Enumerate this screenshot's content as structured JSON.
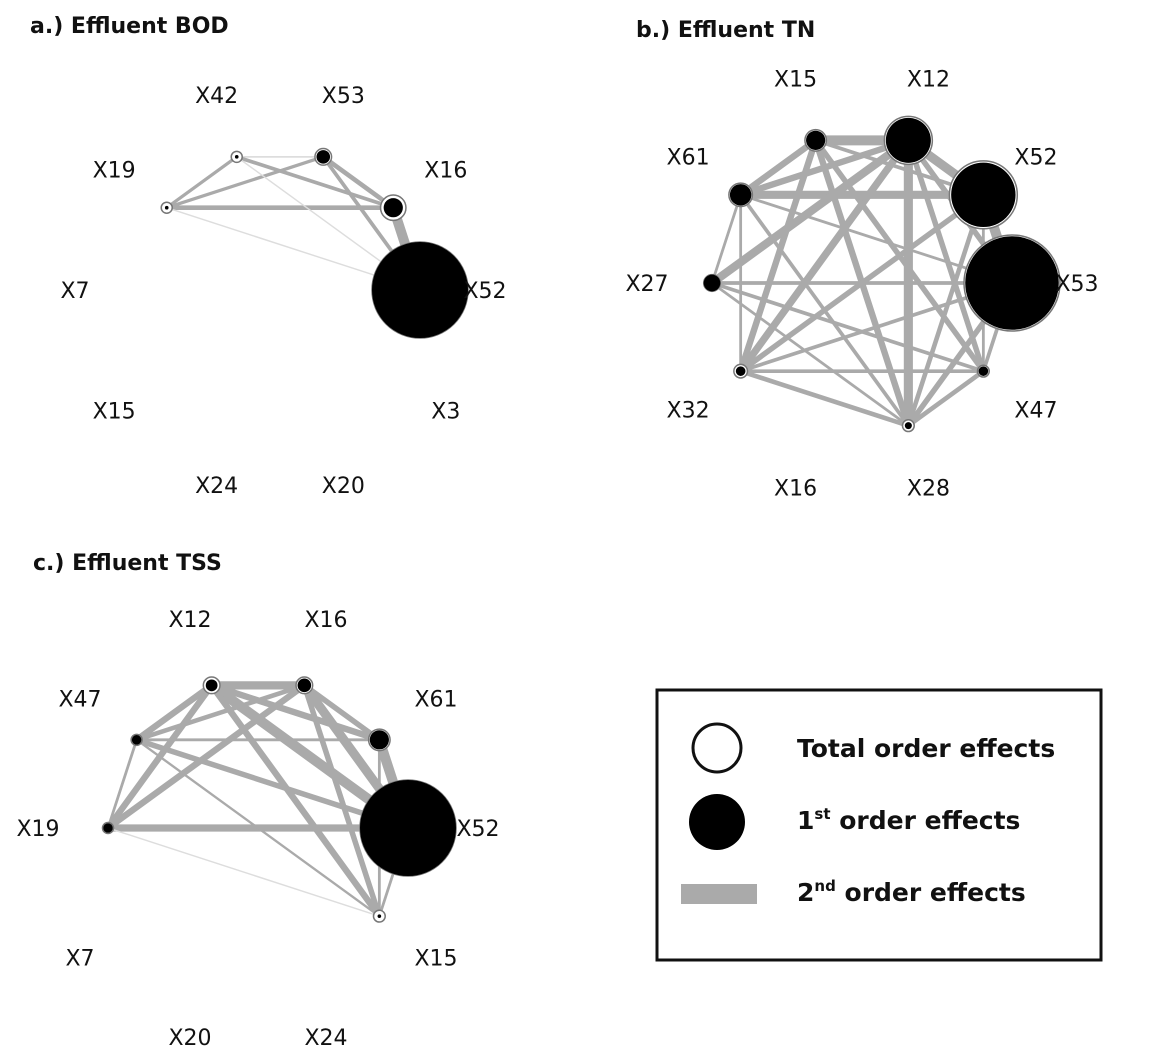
{
  "panels": [
    {
      "id": "a",
      "title": "a.) Effluent BOD",
      "variables": [
        "X42",
        "X53",
        "X16",
        "X52",
        "X3",
        "X20",
        "X24",
        "X15",
        "X7",
        "X19"
      ],
      "nodes": {
        "X42": {
          "first": 0.0,
          "total": 0.01
        },
        "X53": {
          "first": 0.02,
          "total": 0.03
        },
        "X16": {
          "first": 0.04,
          "total": 0.07
        },
        "X52": {
          "first": 1.0,
          "total": 1.0
        },
        "X19": {
          "first": 0.0,
          "total": 0.01
        }
      },
      "edges": [
        {
          "a": "X42",
          "b": "X53",
          "w": 0.08
        },
        {
          "a": "X42",
          "b": "X16",
          "w": 0.3
        },
        {
          "a": "X53",
          "b": "X16",
          "w": 0.4
        },
        {
          "a": "X19",
          "b": "X42",
          "w": 0.25
        },
        {
          "a": "X19",
          "b": "X53",
          "w": 0.25
        },
        {
          "a": "X19",
          "b": "X16",
          "w": 0.4
        },
        {
          "a": "X16",
          "b": "X52",
          "w": 1.0
        },
        {
          "a": "X53",
          "b": "X52",
          "w": 0.3
        },
        {
          "a": "X42",
          "b": "X52",
          "w": 0.05
        },
        {
          "a": "X19",
          "b": "X52",
          "w": 0.05
        }
      ]
    },
    {
      "id": "b",
      "title": "b.) Effluent TN",
      "variables": [
        "X15",
        "X12",
        "X52",
        "X53",
        "X47",
        "X28",
        "X16",
        "X32",
        "X27",
        "X61"
      ],
      "nodes": {
        "X15": {
          "first": 0.04,
          "total": 0.05
        },
        "X12": {
          "first": 0.22,
          "total": 0.25
        },
        "X52": {
          "first": 0.45,
          "total": 0.5
        },
        "X53": {
          "first": 0.95,
          "total": 1.0
        },
        "X47": {
          "first": 0.01,
          "total": 0.015
        },
        "X28": {
          "first": 0.005,
          "total": 0.015
        },
        "X32": {
          "first": 0.01,
          "total": 0.02
        },
        "X27": {
          "first": 0.03,
          "total": 0.03
        },
        "X61": {
          "first": 0.05,
          "total": 0.06
        }
      },
      "edges": [
        {
          "a": "X15",
          "b": "X12",
          "w": 1.0
        },
        {
          "a": "X61",
          "b": "X15",
          "w": 0.6
        },
        {
          "a": "X61",
          "b": "X12",
          "w": 0.6
        },
        {
          "a": "X61",
          "b": "X52",
          "w": 0.8
        },
        {
          "a": "X15",
          "b": "X52",
          "w": 0.3
        },
        {
          "a": "X12",
          "b": "X52",
          "w": 0.9
        },
        {
          "a": "X52",
          "b": "X53",
          "w": 1.0
        },
        {
          "a": "X12",
          "b": "X53",
          "w": 0.5
        },
        {
          "a": "X12",
          "b": "X28",
          "w": 0.9
        },
        {
          "a": "X12",
          "b": "X32",
          "w": 0.7
        },
        {
          "a": "X12",
          "b": "X27",
          "w": 0.8
        },
        {
          "a": "X12",
          "b": "X47",
          "w": 0.5
        },
        {
          "a": "X15",
          "b": "X32",
          "w": 0.6
        },
        {
          "a": "X15",
          "b": "X28",
          "w": 0.6
        },
        {
          "a": "X15",
          "b": "X47",
          "w": 0.5
        },
        {
          "a": "X61",
          "b": "X28",
          "w": 0.3
        },
        {
          "a": "X61",
          "b": "X32",
          "w": 0.2
        },
        {
          "a": "X61",
          "b": "X27",
          "w": 0.2
        },
        {
          "a": "X27",
          "b": "X53",
          "w": 0.3
        },
        {
          "a": "X27",
          "b": "X47",
          "w": 0.3
        },
        {
          "a": "X27",
          "b": "X28",
          "w": 0.2
        },
        {
          "a": "X32",
          "b": "X52",
          "w": 0.5
        },
        {
          "a": "X32",
          "b": "X53",
          "w": 0.3
        },
        {
          "a": "X32",
          "b": "X28",
          "w": 0.4
        },
        {
          "a": "X32",
          "b": "X47",
          "w": 0.3
        },
        {
          "a": "X28",
          "b": "X53",
          "w": 0.5
        },
        {
          "a": "X28",
          "b": "X47",
          "w": 0.4
        },
        {
          "a": "X47",
          "b": "X53",
          "w": 0.3
        },
        {
          "a": "X28",
          "b": "X52",
          "w": 0.4
        },
        {
          "a": "X47",
          "b": "X52",
          "w": 0.2
        },
        {
          "a": "X61",
          "b": "X53",
          "w": 0.2
        }
      ]
    },
    {
      "id": "c",
      "title": "c.) Effluent TSS",
      "variables": [
        "X12",
        "X16",
        "X61",
        "X52",
        "X15",
        "X24",
        "X20",
        "X7",
        "X19",
        "X47"
      ],
      "nodes": {
        "X12": {
          "first": 0.015,
          "total": 0.03
        },
        "X16": {
          "first": 0.02,
          "total": 0.03
        },
        "X61": {
          "first": 0.04,
          "total": 0.05
        },
        "X52": {
          "first": 1.0,
          "total": 1.0
        },
        "X15": {
          "first": 0.002,
          "total": 0.015
        },
        "X19": {
          "first": 0.01,
          "total": 0.01
        },
        "X47": {
          "first": 0.01,
          "total": 0.01
        }
      },
      "edges": [
        {
          "a": "X12",
          "b": "X16",
          "w": 0.8
        },
        {
          "a": "X12",
          "b": "X52",
          "w": 1.0
        },
        {
          "a": "X12",
          "b": "X61",
          "w": 0.6
        },
        {
          "a": "X16",
          "b": "X52",
          "w": 0.9
        },
        {
          "a": "X16",
          "b": "X61",
          "w": 0.5
        },
        {
          "a": "X61",
          "b": "X52",
          "w": 1.0
        },
        {
          "a": "X47",
          "b": "X12",
          "w": 0.6
        },
        {
          "a": "X47",
          "b": "X16",
          "w": 0.4
        },
        {
          "a": "X47",
          "b": "X52",
          "w": 0.5
        },
        {
          "a": "X47",
          "b": "X61",
          "w": 0.2
        },
        {
          "a": "X19",
          "b": "X47",
          "w": 0.2
        },
        {
          "a": "X19",
          "b": "X12",
          "w": 0.6
        },
        {
          "a": "X19",
          "b": "X16",
          "w": 0.6
        },
        {
          "a": "X19",
          "b": "X52",
          "w": 0.7
        },
        {
          "a": "X12",
          "b": "X15",
          "w": 0.6
        },
        {
          "a": "X16",
          "b": "X15",
          "w": 0.5
        },
        {
          "a": "X47",
          "b": "X15",
          "w": 0.15
        },
        {
          "a": "X19",
          "b": "X15",
          "w": 0.05
        },
        {
          "a": "X61",
          "b": "X15",
          "w": 0.2
        },
        {
          "a": "X52",
          "b": "X15",
          "w": 0.2
        }
      ]
    }
  ],
  "legend": {
    "total": {
      "text": "Total order effects"
    },
    "first": {
      "text_sup": "st",
      "text_rest": " order effects",
      "prefix": "1"
    },
    "second": {
      "text_sup": "nd",
      "text_rest": " order effects",
      "prefix": "2"
    }
  },
  "colors": {
    "node_fill": "#000000",
    "edge": "#aaaaaa",
    "edge_light": "#dddddd",
    "text": "#111111"
  }
}
